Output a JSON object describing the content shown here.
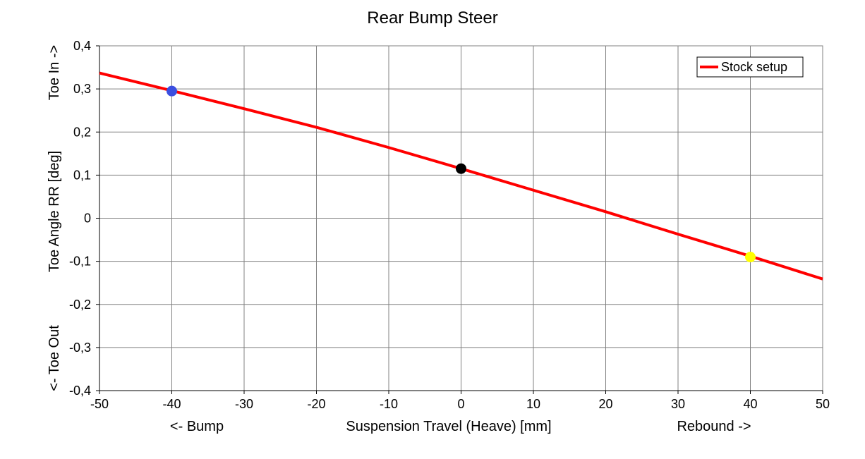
{
  "chart_data": {
    "type": "line",
    "title": "Rear Bump Steer",
    "xlabel": "Suspension Travel (Heave) [mm]",
    "xlabel_left": "<- Bump",
    "xlabel_right": "Rebound ->",
    "ylabel": "Toe Angle RR [deg]",
    "ylabel_top": "Toe In ->",
    "ylabel_bottom": "<- Toe Out",
    "xlim": [
      -50,
      50
    ],
    "ylim": [
      -0.4,
      0.4
    ],
    "x_ticks": [
      -50,
      -40,
      -30,
      -20,
      -10,
      0,
      10,
      20,
      30,
      40,
      50
    ],
    "x_tick_labels": [
      "-50",
      "-40",
      "-30",
      "-20",
      "-10",
      "0",
      "10",
      "20",
      "30",
      "40",
      "50"
    ],
    "y_ticks": [
      -0.4,
      -0.3,
      -0.2,
      -0.1,
      0,
      0.1,
      0.2,
      0.3,
      0.4
    ],
    "y_tick_labels": [
      "-0,4",
      "-0,3",
      "-0,2",
      "-0,1",
      "0",
      "0,1",
      "0,2",
      "0,3",
      "0,4"
    ],
    "grid": true,
    "legend_position": "top-right",
    "series": [
      {
        "name": "Stock setup",
        "color": "#ff0000",
        "x": [
          -50,
          -40,
          -30,
          -20,
          -10,
          0,
          10,
          20,
          30,
          40,
          50
        ],
        "y": [
          0.337,
          0.296,
          0.254,
          0.211,
          0.164,
          0.115,
          0.065,
          0.015,
          -0.037,
          -0.088,
          -0.141
        ]
      }
    ],
    "markers": [
      {
        "x": -40,
        "y": 0.295,
        "color": "#3b4fe0"
      },
      {
        "x": 0,
        "y": 0.115,
        "color": "#000000"
      },
      {
        "x": 40,
        "y": -0.09,
        "color": "#ffff00"
      }
    ]
  }
}
